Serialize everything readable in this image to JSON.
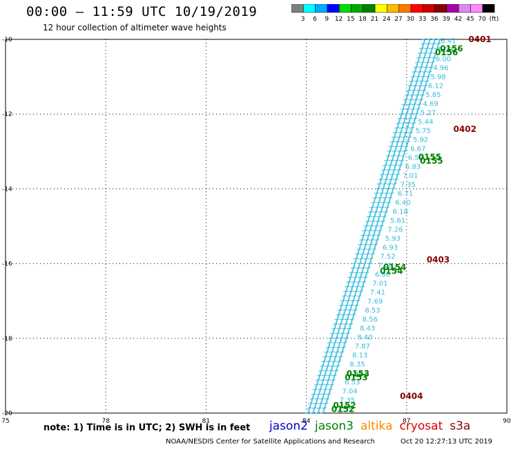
{
  "title": "00:00 – 11:59 UTC 10/19/2019",
  "subtitle": "12 hour collection of altimeter wave heights",
  "colorbar": {
    "labels": [
      "3",
      "6",
      "9",
      "12",
      "15",
      "18",
      "21",
      "24",
      "27",
      "30",
      "33",
      "36",
      "39",
      "42",
      "45",
      "70",
      "(ft)"
    ],
    "colors": [
      "#7f7f7f",
      "#00ffff",
      "#00aaff",
      "#0000ff",
      "#00dd00",
      "#00aa00",
      "#008000",
      "#ffff00",
      "#ffbb00",
      "#ff7700",
      "#ff0000",
      "#cc0000",
      "#880000",
      "#aa00aa",
      "#dd88ee",
      "#ff88ff",
      "#000000"
    ]
  },
  "map": {
    "lon_ticks": [
      "75",
      "78",
      "81",
      "84",
      "87",
      "90"
    ],
    "lat_ticks": [
      "-10",
      "-12",
      "-14",
      "-16",
      "-18",
      "-20"
    ],
    "grid": "dotted"
  },
  "track_labels": [
    {
      "text": "0401",
      "color": "#880000",
      "lat": -10.0,
      "lon": 88.85
    },
    {
      "text": "0156",
      "color": "#008000",
      "lat": -10.25,
      "lon": 88.0
    },
    {
      "text": "0156",
      "color": "#008000",
      "lat": -10.35,
      "lon": 87.85
    },
    {
      "text": "0402",
      "color": "#880000",
      "lat": -12.4,
      "lon": 88.4
    },
    {
      "text": "0155",
      "color": "#008000",
      "lat": -13.15,
      "lon": 87.35
    },
    {
      "text": "0155",
      "color": "#008000",
      "lat": -13.25,
      "lon": 87.4
    },
    {
      "text": "0403",
      "color": "#880000",
      "lat": -15.9,
      "lon": 87.6
    },
    {
      "text": "0154",
      "color": "#008000",
      "lat": -16.1,
      "lon": 86.3
    },
    {
      "text": "0154",
      "color": "#008000",
      "lat": -16.2,
      "lon": 86.2
    },
    {
      "text": "0404",
      "color": "#880000",
      "lat": -19.55,
      "lon": 86.8
    },
    {
      "text": "0153",
      "color": "#008000",
      "lat": -18.95,
      "lon": 85.2
    },
    {
      "text": "0153",
      "color": "#008000",
      "lat": -19.05,
      "lon": 85.15
    },
    {
      "text": "0152",
      "color": "#008000",
      "lat": -19.8,
      "lon": 84.8
    },
    {
      "text": "0152",
      "color": "#008000",
      "lat": -19.9,
      "lon": 84.75
    }
  ],
  "swh_column": {
    "color": "#33bbdd",
    "values": [
      "6.41",
      "5.23",
      "6.00",
      "4.96",
      "5.98",
      "6.12",
      "5.85",
      "4.69",
      "5.27",
      "5.44",
      "5.75",
      "5.92",
      "6.67",
      "6.55",
      "6.83",
      "7.01",
      "7.35",
      "6.71",
      "6.40",
      "6.18",
      "5.61",
      "7.26",
      "5.93",
      "6.93",
      "7.52",
      "7.00",
      "6.80",
      "7.01",
      "7.41",
      "7.69",
      "8.53",
      "8.56",
      "8.43",
      "8.40",
      "7.87",
      "8.13",
      "8.35",
      "6.93",
      "6.53",
      "7.04",
      "7.35",
      "7.35"
    ]
  },
  "note": "note: 1) Time is in UTC; 2) SWH is in feet",
  "legend": [
    {
      "name": "jason2",
      "color": "#0000cc"
    },
    {
      "name": "jason3",
      "color": "#008000"
    },
    {
      "name": "altika",
      "color": "#ff8800"
    },
    {
      "name": "cryosat",
      "color": "#dd0000"
    },
    {
      "name": "s3a",
      "color": "#880000"
    }
  ],
  "footer_left": "NOAA/NESDIS Center for Satellite Applications and Research",
  "footer_right": "Oct 20 12:27:13 UTC 2019"
}
